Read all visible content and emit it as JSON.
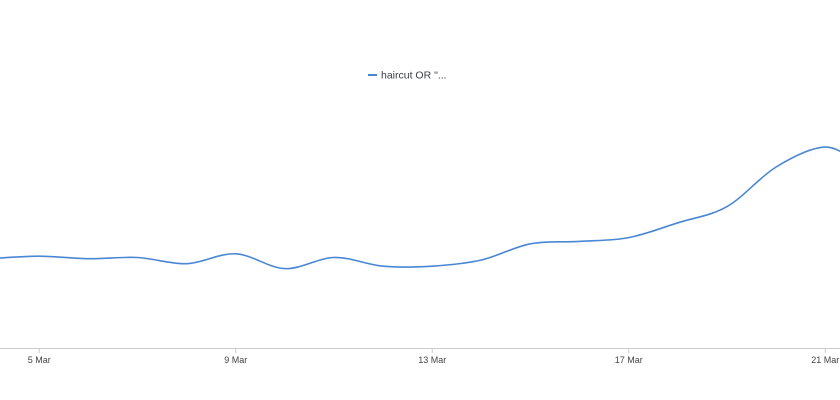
{
  "chart_data": {
    "type": "line",
    "title": "",
    "xlabel": "",
    "ylabel": "",
    "legend_placement": "top-center",
    "grid": false,
    "x": [
      "4 Mar",
      "5 Mar",
      "6 Mar",
      "7 Mar",
      "8 Mar",
      "9 Mar",
      "10 Mar",
      "11 Mar",
      "12 Mar",
      "13 Mar",
      "14 Mar",
      "15 Mar",
      "16 Mar",
      "17 Mar",
      "18 Mar",
      "19 Mar",
      "20 Mar",
      "21 Mar",
      "21.7 Mar"
    ],
    "x_positions": [
      4,
      5,
      6,
      7,
      8,
      9,
      10,
      11,
      12,
      13,
      14,
      15,
      16,
      17,
      18,
      19,
      20,
      21,
      21.7
    ],
    "x_ticks": [
      {
        "label": "5 Mar",
        "value": 5
      },
      {
        "label": "9 Mar",
        "value": 9
      },
      {
        "label": "13 Mar",
        "value": 13
      },
      {
        "label": "17 Mar",
        "value": 17
      },
      {
        "label": "21 Mar",
        "value": 21
      }
    ],
    "xlim": [
      4.2,
      21.3
    ],
    "ylim": [
      0,
      100
    ],
    "series": [
      {
        "name": "haircut OR \"...",
        "color": "#4a86d4",
        "values": [
          36,
          37,
          36,
          36.5,
          34,
          38,
          32,
          36.5,
          33,
          33,
          35.5,
          42,
          43,
          44.5,
          50.5,
          57,
          73,
          81,
          74
        ]
      }
    ]
  }
}
